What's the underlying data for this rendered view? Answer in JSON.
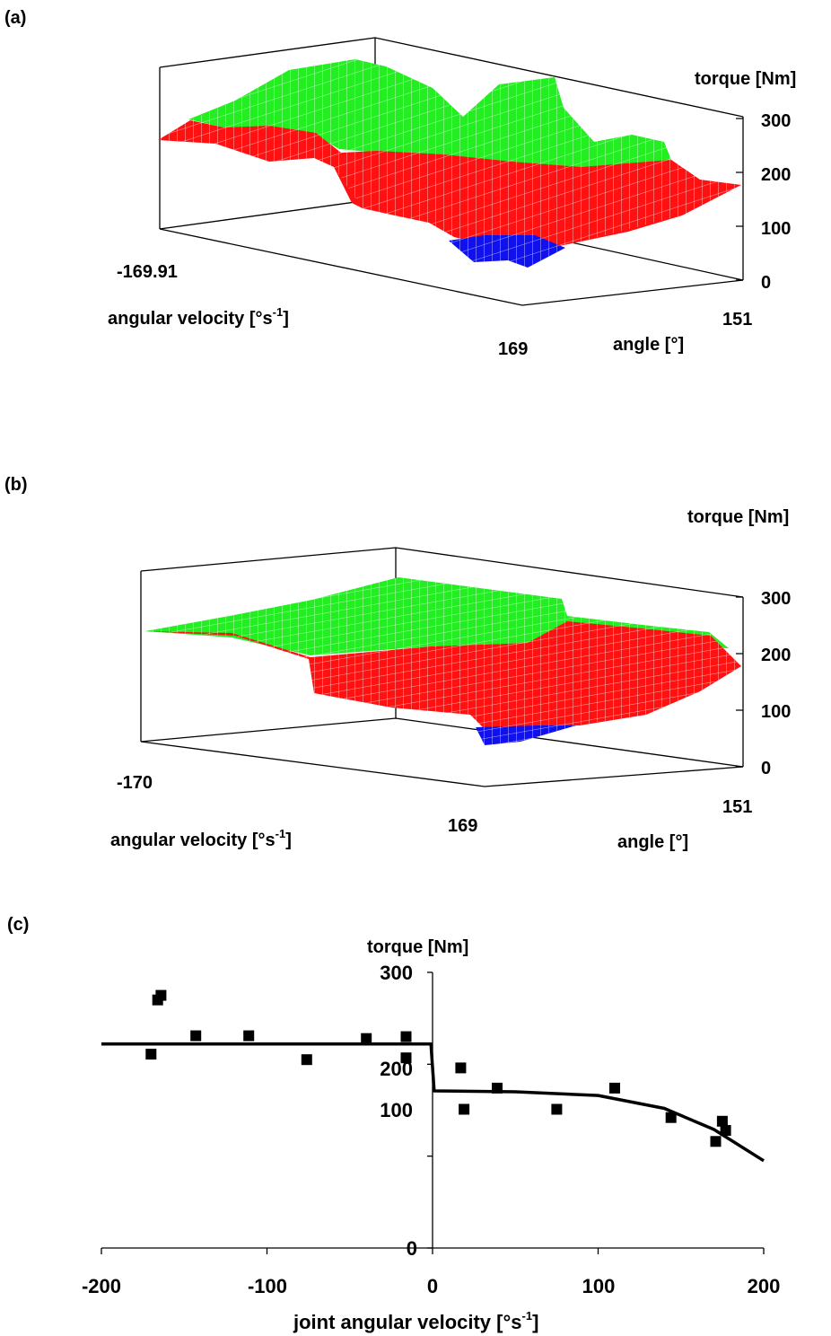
{
  "panels": {
    "a": {
      "tag": "(a)",
      "zlabel": "torque [Nm]",
      "zticks": [
        "300",
        "200",
        "100",
        "0"
      ],
      "x_end_label": "-169.91",
      "x_label": "angular velocity [°s",
      "x_label_sup": "-1",
      "x_label_close": "]",
      "x_far_label": "169",
      "y_end_label": "151",
      "y_label": "angle [°]"
    },
    "b": {
      "tag": "(b)",
      "zlabel": "torque [Nm]",
      "zticks": [
        "300",
        "200",
        "100",
        "0"
      ],
      "x_end_label": "-170",
      "x_label": "angular velocity [°s",
      "x_label_sup": "-1",
      "x_label_close": "]",
      "x_far_label": "169",
      "y_end_label": "151",
      "y_label": "angle [°]"
    },
    "c": {
      "tag": "(c)",
      "ylabel": "torque [Nm]",
      "xlabel": "joint angular velocity [°s",
      "xlabel_sup": "-1",
      "xlabel_close": "]",
      "yticks": [
        "300",
        "200",
        "100",
        "0"
      ],
      "xticks": [
        "-200",
        "-100",
        "0",
        "100",
        "200"
      ]
    }
  },
  "colors": {
    "green": "#22ee22",
    "red": "#ff1111",
    "blue": "#1111ee",
    "mesh": "#ffffff",
    "ink": "#000000"
  },
  "chart_data": [
    {
      "type": "surface3d",
      "panel": "a",
      "zlabel": "torque [Nm]",
      "zlim": [
        0,
        300
      ],
      "x_range_labels": [
        "-169.91",
        "169"
      ],
      "y_end_label": "151",
      "surface_colors": [
        "green",
        "red",
        "blue"
      ]
    },
    {
      "type": "surface3d",
      "panel": "b",
      "zlabel": "torque [Nm]",
      "zlim": [
        0,
        300
      ],
      "x_range_labels": [
        "-170",
        "169"
      ],
      "y_end_label": "151",
      "surface_colors": [
        "green",
        "red",
        "blue"
      ]
    },
    {
      "type": "scatter",
      "panel": "c",
      "xlabel": "joint angular velocity [°s-1]",
      "ylabel": "torque [Nm]",
      "xlim": [
        -200,
        200
      ],
      "ylim": [
        0,
        300
      ],
      "points": [
        [
          -170,
          211
        ],
        [
          -166,
          270
        ],
        [
          -164,
          275
        ],
        [
          -143,
          231
        ],
        [
          -111,
          231
        ],
        [
          -76,
          205
        ],
        [
          -40,
          228
        ],
        [
          -16,
          230
        ],
        [
          -16,
          207
        ],
        [
          17,
          196
        ],
        [
          19,
          151
        ],
        [
          39,
          174
        ],
        [
          75,
          151
        ],
        [
          110,
          174
        ],
        [
          144,
          142
        ],
        [
          171,
          116
        ],
        [
          175,
          138
        ],
        [
          177,
          128
        ]
      ],
      "fit_curve": [
        [
          -200,
          222
        ],
        [
          -100,
          222
        ],
        [
          -1,
          222
        ],
        [
          1,
          171
        ],
        [
          50,
          170
        ],
        [
          100,
          166
        ],
        [
          140,
          152
        ],
        [
          170,
          129
        ],
        [
          200,
          95
        ]
      ]
    }
  ]
}
